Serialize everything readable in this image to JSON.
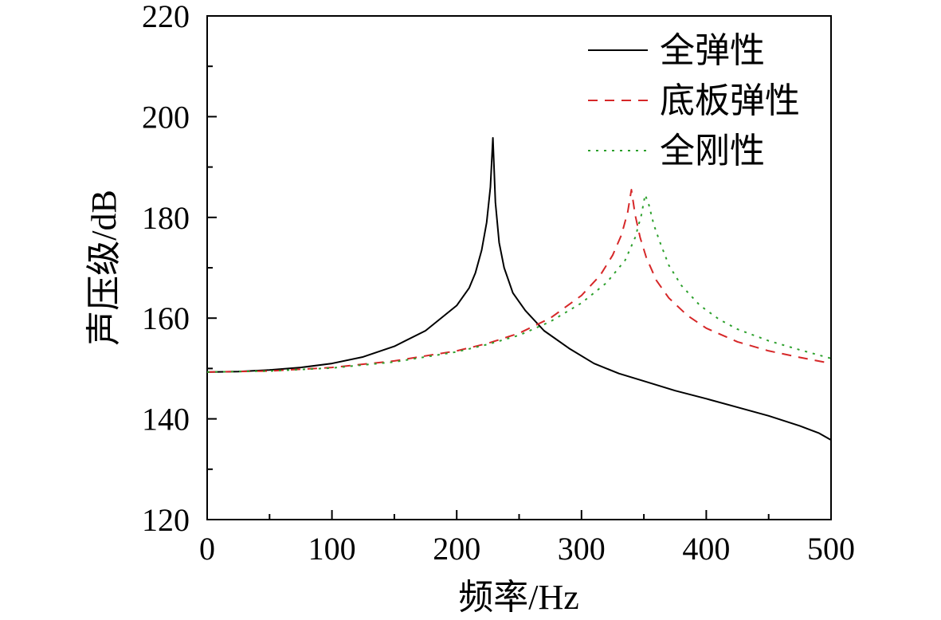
{
  "chart_data": {
    "type": "line",
    "title": "",
    "xlabel": "频率/Hz",
    "ylabel": "声压级/dB",
    "xlim": [
      0,
      500
    ],
    "ylim": [
      120,
      220
    ],
    "x_ticks": [
      0,
      100,
      200,
      300,
      400,
      500
    ],
    "y_ticks": [
      120,
      140,
      160,
      180,
      200,
      220
    ],
    "x_tick_labels": [
      "0",
      "100",
      "200",
      "300",
      "400",
      "500"
    ],
    "y_tick_labels": [
      "120",
      "140",
      "160",
      "180",
      "200",
      "220"
    ],
    "grid": false,
    "legend_position": "top-right",
    "series": [
      {
        "name": "全弹性",
        "color": "#000000",
        "style": "solid",
        "x": [
          0,
          25,
          50,
          75,
          100,
          125,
          150,
          175,
          200,
          210,
          215,
          220,
          224,
          227,
          229,
          231,
          234,
          238,
          245,
          255,
          270,
          290,
          310,
          330,
          350,
          375,
          400,
          425,
          450,
          475,
          490,
          500
        ],
        "y": [
          149.3,
          149.4,
          149.7,
          150.2,
          151.0,
          152.3,
          154.4,
          157.5,
          162.5,
          166.0,
          169.0,
          173.5,
          179.0,
          186.0,
          195.8,
          183.0,
          175.0,
          170.0,
          165.0,
          161.5,
          157.5,
          154.0,
          151.0,
          149.0,
          147.5,
          145.6,
          144.0,
          142.3,
          140.6,
          138.6,
          137.2,
          135.8
        ]
      },
      {
        "name": "底板弹性",
        "color": "#d62728",
        "style": "dashed",
        "x": [
          0,
          50,
          100,
          150,
          200,
          225,
          250,
          275,
          300,
          315,
          325,
          332,
          337,
          340,
          343,
          347,
          352,
          360,
          370,
          385,
          400,
          425,
          450,
          475,
          500
        ],
        "y": [
          149.3,
          149.5,
          150.2,
          151.5,
          153.5,
          155.0,
          157.0,
          160.0,
          164.5,
          168.5,
          172.5,
          176.5,
          181.0,
          185.5,
          180.5,
          176.0,
          172.0,
          167.5,
          164.0,
          160.5,
          158.0,
          155.3,
          153.5,
          152.2,
          151.0
        ]
      },
      {
        "name": "全刚性",
        "color": "#2ca02c",
        "style": "dotted",
        "x": [
          0,
          50,
          100,
          150,
          200,
          225,
          250,
          275,
          300,
          320,
          335,
          343,
          348,
          351,
          354,
          358,
          363,
          370,
          380,
          395,
          410,
          425,
          450,
          475,
          500
        ],
        "y": [
          149.3,
          149.5,
          150.1,
          151.3,
          153.3,
          154.8,
          156.6,
          159.3,
          163.0,
          167.0,
          171.5,
          176.0,
          180.5,
          184.5,
          182.5,
          178.5,
          175.0,
          170.5,
          166.5,
          162.5,
          159.8,
          157.8,
          155.5,
          153.7,
          152.0
        ]
      }
    ]
  }
}
